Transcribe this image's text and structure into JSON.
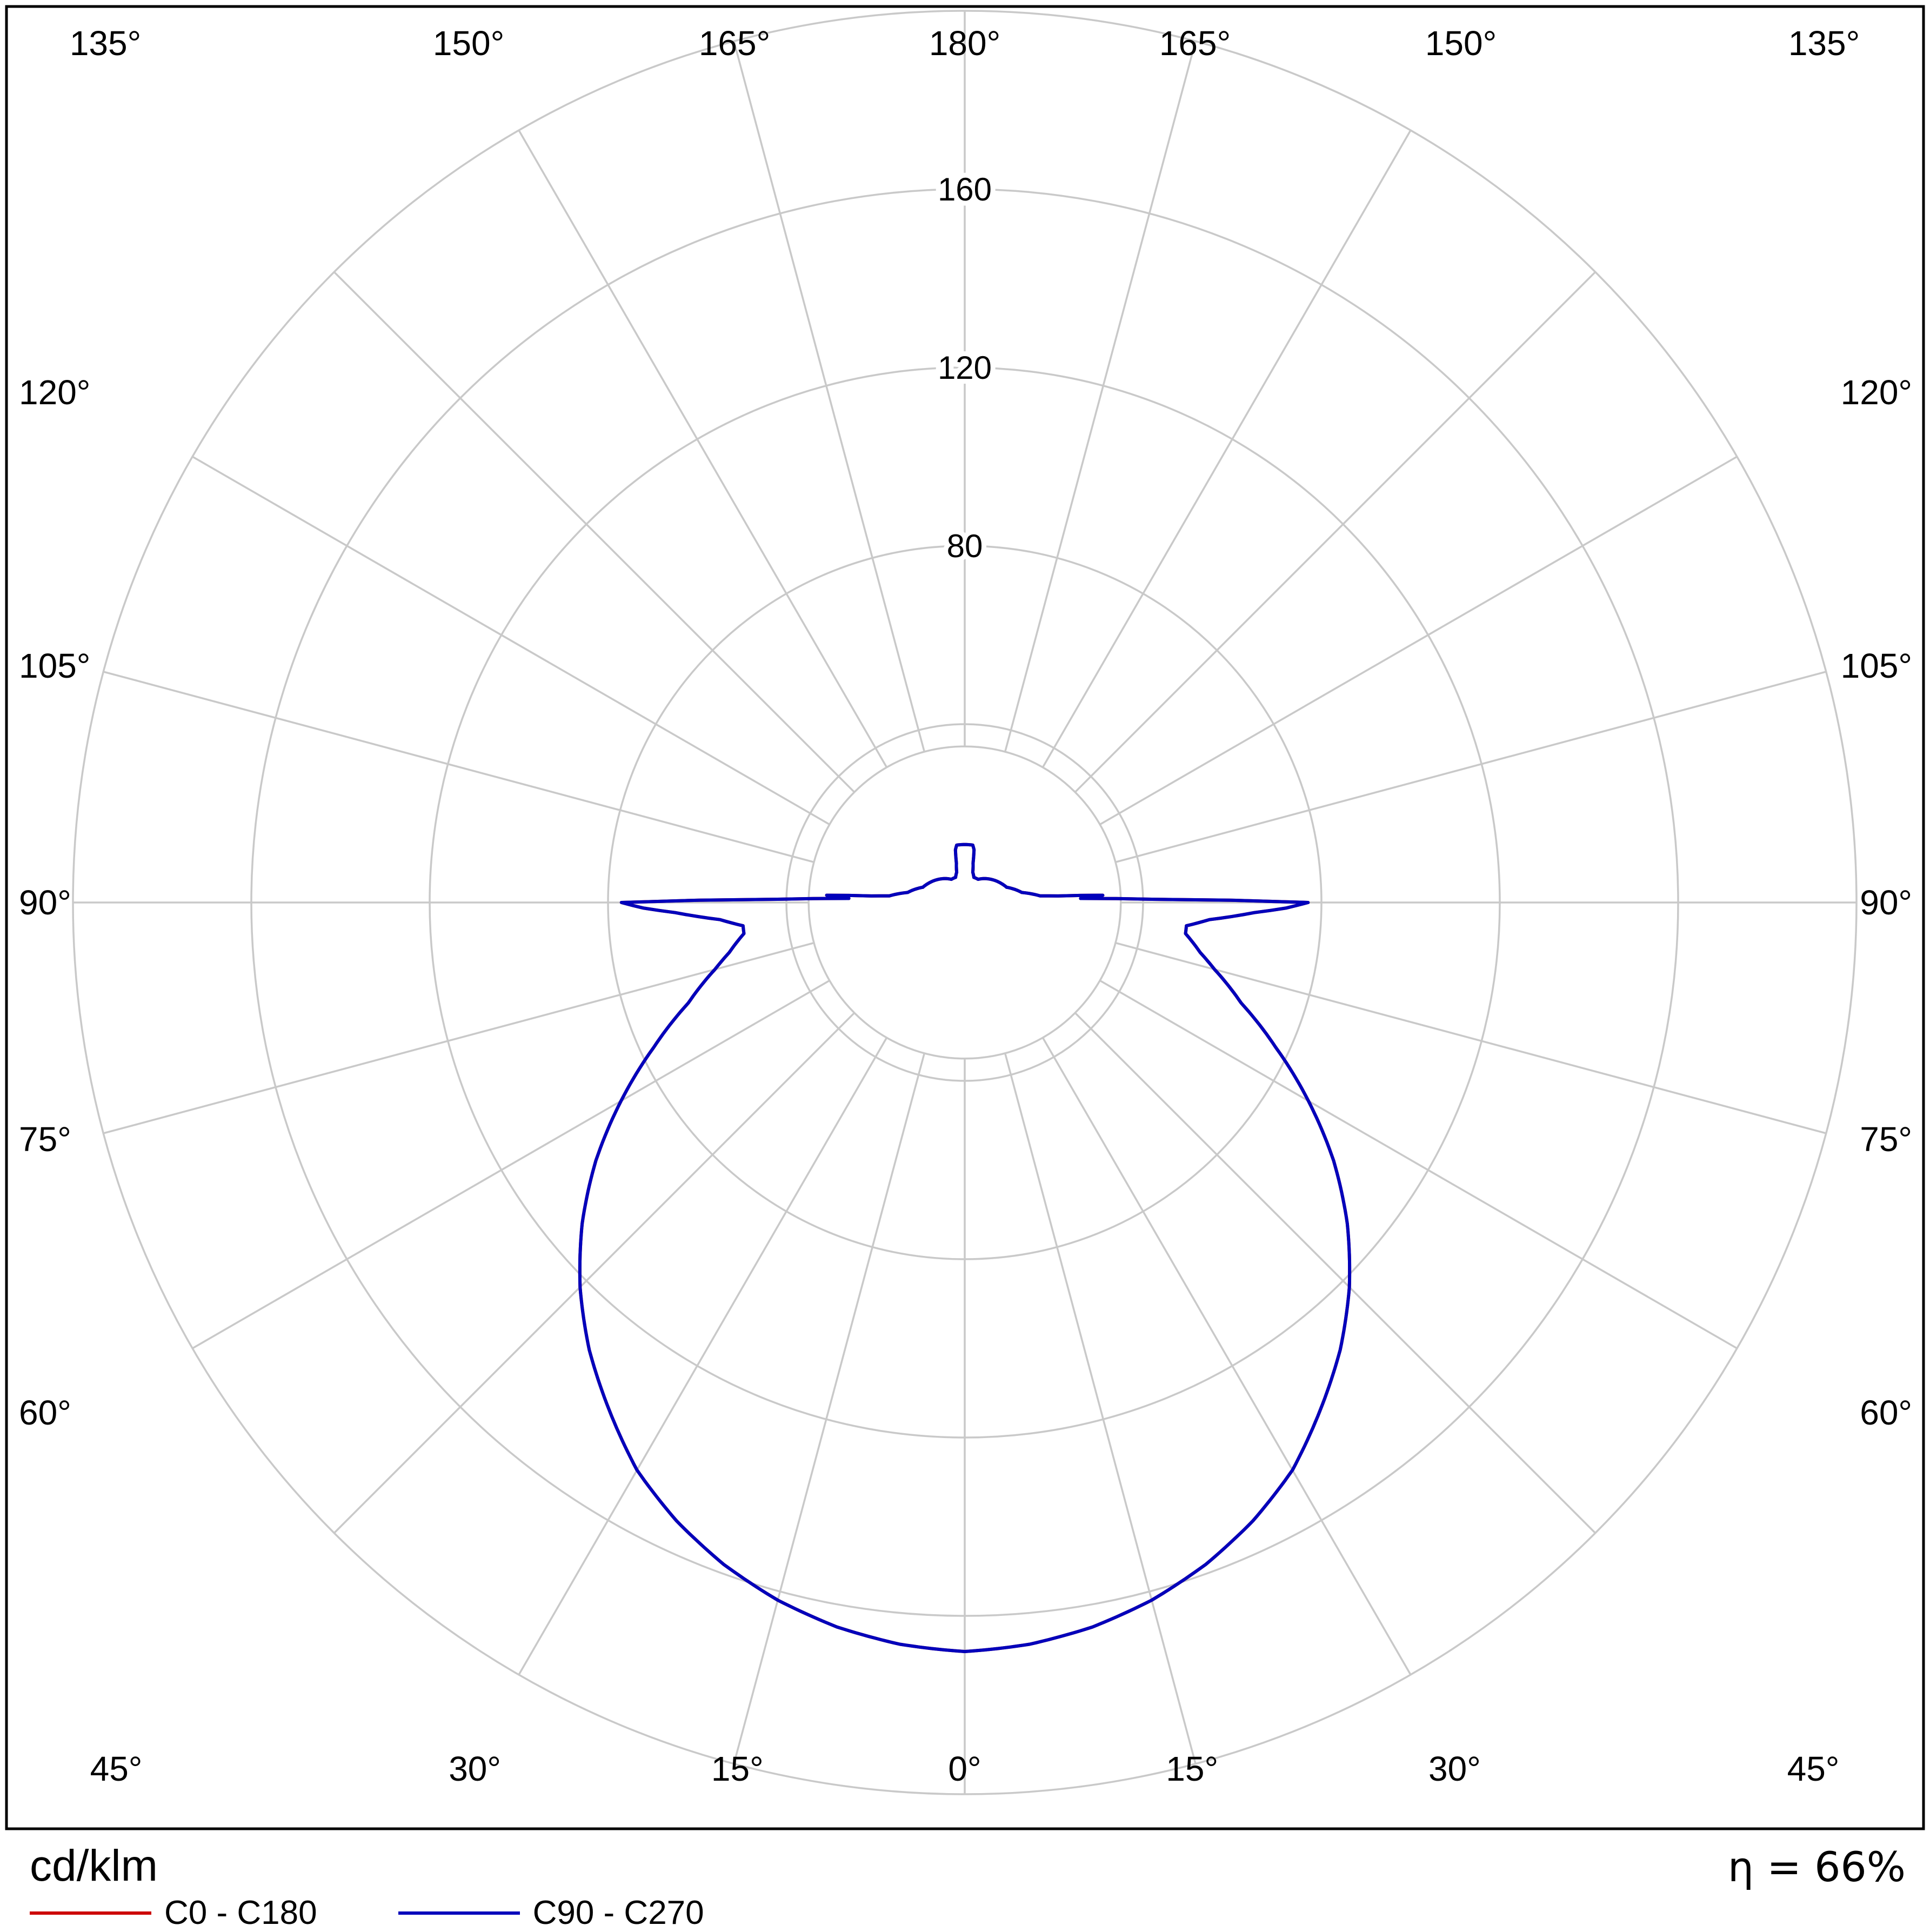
{
  "chart_data": {
    "type": "polar_intensity",
    "description": "Luminaire polar luminous intensity distribution diagram",
    "unit": "cd/klm",
    "efficiency": "η = 66%",
    "grid_color": "#c9c9c9",
    "r_max": 200,
    "inner_circle_r": 35,
    "angle_step_deg": 15,
    "ring_values": [
      40,
      80,
      120,
      160,
      200
    ],
    "ring_label_values": [
      80,
      120,
      160
    ],
    "ring_labels": [
      "80",
      "120",
      "160"
    ],
    "angles": [
      0,
      15,
      30,
      45,
      60,
      75,
      90,
      105,
      120,
      135,
      150,
      165,
      180
    ],
    "angle_labels": [
      "0°",
      "15°",
      "30°",
      "45°",
      "60°",
      "75°",
      "90°",
      "105°",
      "120°",
      "135°",
      "150°",
      "165°",
      "180°"
    ],
    "series": [
      {
        "name": "C0 - C180",
        "color": "#cc0000",
        "points": [
          [
            0,
            168
          ],
          [
            5,
            167
          ],
          [
            10,
            165
          ],
          [
            15,
            162
          ],
          [
            20,
            158
          ],
          [
            25,
            153
          ],
          [
            30,
            147
          ],
          [
            35,
            139
          ],
          [
            40,
            131
          ],
          [
            45,
            122
          ],
          [
            50,
            112
          ],
          [
            55,
            101
          ],
          [
            60,
            89
          ],
          [
            65,
            77
          ],
          [
            70,
            66
          ],
          [
            75,
            58
          ],
          [
            78,
            54
          ],
          [
            80,
            52
          ],
          [
            82,
            50
          ],
          [
            84,
            50
          ],
          [
            86,
            55
          ],
          [
            88,
            65
          ],
          [
            89,
            72
          ],
          [
            90,
            77
          ],
          [
            91,
            42
          ],
          [
            92,
            26
          ],
          [
            93,
            31
          ],
          [
            94,
            21
          ],
          [
            95,
            17
          ],
          [
            100,
            13
          ],
          [
            110,
            10
          ],
          [
            120,
            9
          ],
          [
            130,
            8
          ],
          [
            140,
            7
          ],
          [
            150,
            6
          ],
          [
            160,
            6
          ],
          [
            165,
            7
          ],
          [
            168,
            9
          ],
          [
            170,
            12
          ],
          [
            172,
            13
          ],
          [
            176,
            13
          ],
          [
            180,
            13
          ]
        ]
      },
      {
        "name": "C90 - C270",
        "color": "#0000bb",
        "points": [
          [
            0,
            168
          ],
          [
            5,
            167
          ],
          [
            10,
            165
          ],
          [
            15,
            162
          ],
          [
            20,
            158
          ],
          [
            25,
            153
          ],
          [
            30,
            147
          ],
          [
            35,
            139
          ],
          [
            40,
            131
          ],
          [
            45,
            122
          ],
          [
            50,
            112
          ],
          [
            55,
            101
          ],
          [
            60,
            89
          ],
          [
            65,
            77
          ],
          [
            70,
            66
          ],
          [
            75,
            58
          ],
          [
            78,
            54
          ],
          [
            80,
            52
          ],
          [
            82,
            50
          ],
          [
            84,
            50
          ],
          [
            86,
            55
          ],
          [
            88,
            65
          ],
          [
            89,
            72
          ],
          [
            90,
            77
          ],
          [
            91,
            42
          ],
          [
            92,
            26
          ],
          [
            93,
            31
          ],
          [
            94,
            21
          ],
          [
            95,
            17
          ],
          [
            100,
            13
          ],
          [
            110,
            10
          ],
          [
            120,
            9
          ],
          [
            130,
            8
          ],
          [
            140,
            7
          ],
          [
            150,
            6
          ],
          [
            160,
            6
          ],
          [
            165,
            7
          ],
          [
            168,
            9
          ],
          [
            170,
            12
          ],
          [
            172,
            13
          ],
          [
            176,
            13
          ],
          [
            180,
            13
          ]
        ]
      }
    ]
  },
  "legend": {
    "unit_label": "cd/klm",
    "efficiency": "η = 66%",
    "items": [
      {
        "label": "C0 - C180",
        "color": "#cc0000"
      },
      {
        "label": "C90 - C270",
        "color": "#0000bb"
      }
    ]
  }
}
